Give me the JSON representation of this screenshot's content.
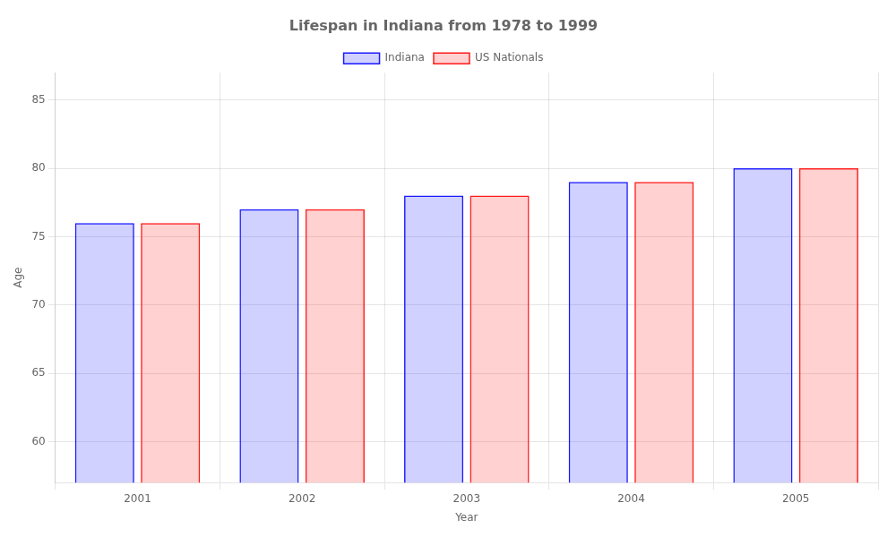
{
  "chart_data": {
    "type": "bar",
    "title": "Lifespan in Indiana from 1978 to 1999",
    "xlabel": "Year",
    "ylabel": "Age",
    "categories": [
      "2001",
      "2002",
      "2003",
      "2004",
      "2005"
    ],
    "series": [
      {
        "name": "Indiana",
        "color": "#1a1aff",
        "values": [
          76,
          77,
          78,
          79,
          80
        ]
      },
      {
        "name": "US Nationals",
        "color": "#ff1a1a",
        "values": [
          76,
          77,
          78,
          79,
          80
        ]
      }
    ],
    "ylim": [
      57,
      87
    ],
    "yticks": [
      60,
      65,
      70,
      75,
      80,
      85
    ],
    "grid": true,
    "legend": "top"
  }
}
